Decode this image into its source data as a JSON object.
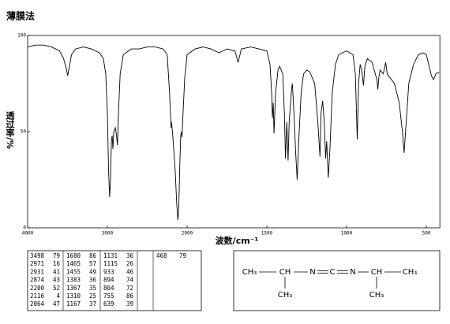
{
  "chart_data": {
    "type": "line",
    "title": "薄膜法",
    "x_label": "波数/cm⁻¹",
    "y_label": "透过率/%",
    "x": [
      4000,
      3900,
      3800,
      3700,
      3600,
      3550,
      3510,
      3498,
      3480,
      3450,
      3400,
      3300,
      3200,
      3100,
      3050,
      3020,
      3000,
      2985,
      2971,
      2960,
      2950,
      2940,
      2931,
      2920,
      2900,
      2885,
      2874,
      2860,
      2840,
      2800,
      2700,
      2600,
      2500,
      2400,
      2300,
      2250,
      2220,
      2210,
      2200,
      2195,
      2180,
      2150,
      2130,
      2116,
      2105,
      2090,
      2080,
      2070,
      2064,
      2050,
      2030,
      2000,
      1950,
      1900,
      1850,
      1800,
      1750,
      1700,
      1680,
      1660,
      1600,
      1550,
      1500,
      1480,
      1470,
      1465,
      1460,
      1455,
      1445,
      1430,
      1420,
      1400,
      1390,
      1383,
      1375,
      1367,
      1360,
      1345,
      1340,
      1330,
      1320,
      1310,
      1300,
      1285,
      1270,
      1250,
      1230,
      1200,
      1180,
      1167,
      1160,
      1150,
      1140,
      1131,
      1125,
      1115,
      1105,
      1090,
      1070,
      1050,
      1000,
      960,
      945,
      933,
      925,
      915,
      905,
      894,
      885,
      870,
      840,
      820,
      810,
      804,
      798,
      790,
      770,
      760,
      755,
      745,
      700,
      670,
      650,
      639,
      630,
      610,
      580,
      550,
      520,
      500,
      485,
      468,
      455,
      440,
      420
    ],
    "y": [
      94,
      95,
      95,
      94,
      92,
      88,
      82,
      79,
      83,
      90,
      93,
      94,
      93,
      91,
      88,
      80,
      60,
      30,
      16,
      25,
      45,
      48,
      41,
      50,
      52,
      48,
      43,
      60,
      80,
      90,
      93,
      93,
      94,
      94,
      93,
      90,
      70,
      60,
      52,
      55,
      48,
      30,
      12,
      4,
      10,
      35,
      48,
      50,
      47,
      60,
      78,
      90,
      93,
      94,
      93,
      91,
      93,
      92,
      86,
      93,
      94,
      93,
      92,
      85,
      70,
      57,
      65,
      49,
      70,
      82,
      84,
      80,
      60,
      36,
      55,
      35,
      55,
      72,
      75,
      60,
      40,
      25,
      45,
      70,
      80,
      82,
      81,
      75,
      55,
      37,
      60,
      66,
      55,
      36,
      45,
      26,
      40,
      70,
      85,
      90,
      92,
      90,
      80,
      46,
      75,
      85,
      82,
      74,
      84,
      88,
      86,
      80,
      77,
      72,
      78,
      82,
      80,
      84,
      86,
      80,
      75,
      65,
      50,
      39,
      50,
      75,
      85,
      90,
      91,
      90,
      85,
      79,
      77,
      80,
      81
    ],
    "color": "#000000",
    "xlim": [
      4000,
      415
    ],
    "ylim": [
      0,
      100
    ],
    "xticks": [
      4000,
      3000,
      2000,
      1500,
      1000,
      500
    ],
    "yticks": [
      0,
      50,
      100
    ]
  },
  "peak_table": {
    "columns": [
      [
        [
          "3498",
          "79"
        ],
        [
          "2971",
          "16"
        ],
        [
          "2931",
          "41"
        ],
        [
          "2874",
          "43"
        ],
        [
          "2200",
          "52"
        ],
        [
          "2116",
          "4"
        ],
        [
          "2064",
          "47"
        ]
      ],
      [
        [
          "1680",
          "86"
        ],
        [
          "1465",
          "57"
        ],
        [
          "1455",
          "49"
        ],
        [
          "1383",
          "36"
        ],
        [
          "1367",
          "35"
        ],
        [
          "1310",
          "25"
        ],
        [
          "1167",
          "37"
        ]
      ],
      [
        [
          "1131",
          "36"
        ],
        [
          "1115",
          "26"
        ],
        [
          "933",
          "46"
        ],
        [
          "894",
          "74"
        ],
        [
          "804",
          "72"
        ],
        [
          "755",
          "86"
        ],
        [
          "639",
          "39"
        ]
      ],
      [
        [
          "468",
          "79"
        ]
      ]
    ]
  },
  "structure": {
    "main": [
      "CH₃",
      "CH",
      "N",
      "C",
      "N",
      "CH",
      "CH₃"
    ],
    "branches": [
      "CH₃",
      "CH₃"
    ]
  }
}
